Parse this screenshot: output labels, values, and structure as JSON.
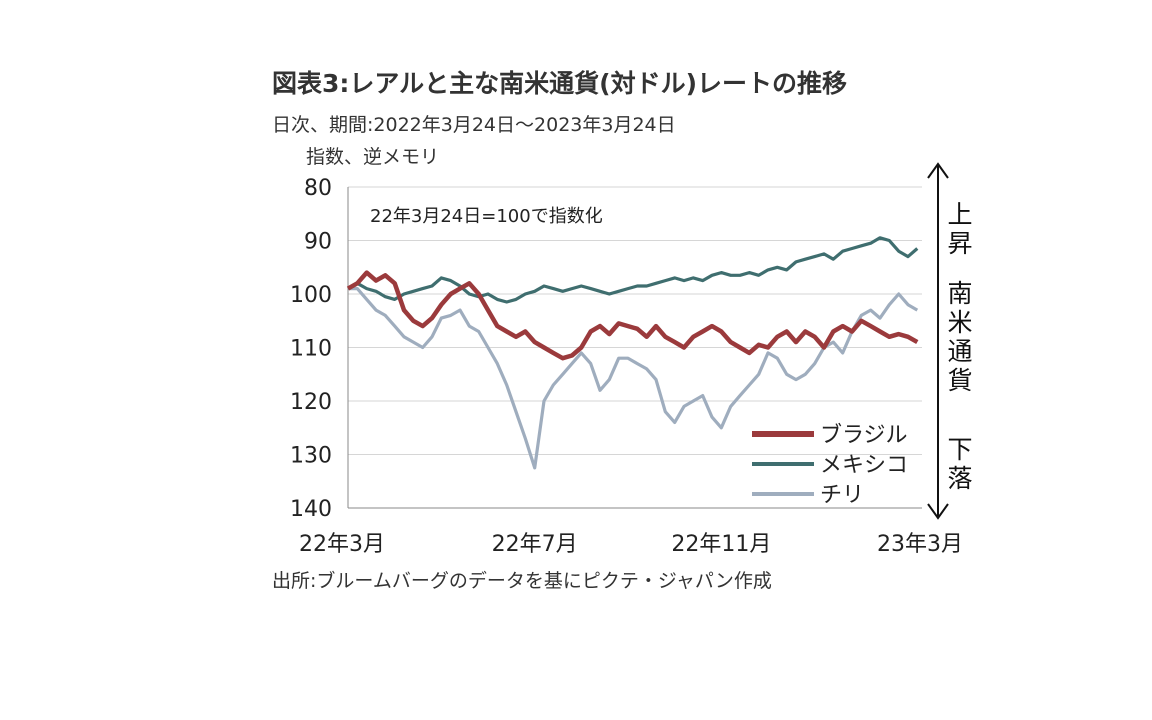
{
  "title": "図表3:レアルと主な南米通貨(対ドル)レートの推移",
  "subtitle": "日次、期間:2022年3月24日～2023年3月24日",
  "unit_note": "指数、逆メモリ",
  "source": "出所:ブルームバーグのデータを基にピクテ・ジャパン作成",
  "chart_data": {
    "type": "line",
    "annotation": "22年3月24日=100で指数化",
    "side_labels": {
      "up": "上昇",
      "middle": "南米通貨",
      "down": "下落"
    },
    "y_axis": {
      "reversed": true,
      "ylim": [
        80,
        140
      ],
      "ticks": [
        80,
        90,
        100,
        110,
        120,
        130,
        140
      ]
    },
    "x_axis": {
      "tick_labels": [
        "22年3月",
        "22年7月",
        "22年11月",
        "23年3月"
      ],
      "tick_positions_months": [
        0,
        4,
        8,
        12
      ],
      "xlim_months": [
        0,
        12.3
      ]
    },
    "legend_position": "bottom-right",
    "series": [
      {
        "name": "ブラジル",
        "color": "#9b3a3c",
        "x": [
          0,
          0.2,
          0.4,
          0.6,
          0.8,
          1.0,
          1.2,
          1.4,
          1.6,
          1.8,
          2.0,
          2.2,
          2.4,
          2.6,
          2.8,
          3.0,
          3.2,
          3.4,
          3.6,
          3.8,
          4.0,
          4.2,
          4.4,
          4.6,
          4.8,
          5.0,
          5.2,
          5.4,
          5.6,
          5.8,
          6.0,
          6.2,
          6.4,
          6.6,
          6.8,
          7.0,
          7.2,
          7.4,
          7.6,
          7.8,
          8.0,
          8.2,
          8.4,
          8.6,
          8.8,
          9.0,
          9.2,
          9.4,
          9.6,
          9.8,
          10.0,
          10.2,
          10.4,
          10.6,
          10.8,
          11.0,
          11.2,
          11.4,
          11.6,
          11.8,
          12.0,
          12.2
        ],
        "values": [
          99,
          98,
          96,
          97.5,
          96.5,
          98,
          103,
          105,
          106,
          104.5,
          102,
          100,
          99,
          98,
          100,
          103,
          106,
          107,
          108,
          107,
          109,
          110,
          111,
          112,
          111.5,
          110,
          107,
          106,
          107.5,
          105.5,
          106,
          106.5,
          108,
          106,
          108,
          109,
          110,
          108,
          107,
          106,
          107,
          109,
          110,
          111,
          109.5,
          110,
          108,
          107,
          109,
          107,
          108,
          110,
          107,
          106,
          107,
          105,
          106,
          107,
          108,
          107.5,
          108,
          109
        ]
      },
      {
        "name": "メキシコ",
        "color": "#3f6e6f",
        "x": [
          0,
          0.2,
          0.4,
          0.6,
          0.8,
          1.0,
          1.2,
          1.4,
          1.6,
          1.8,
          2.0,
          2.2,
          2.4,
          2.6,
          2.8,
          3.0,
          3.2,
          3.4,
          3.6,
          3.8,
          4.0,
          4.2,
          4.4,
          4.6,
          4.8,
          5.0,
          5.2,
          5.4,
          5.6,
          5.8,
          6.0,
          6.2,
          6.4,
          6.6,
          6.8,
          7.0,
          7.2,
          7.4,
          7.6,
          7.8,
          8.0,
          8.2,
          8.4,
          8.6,
          8.8,
          9.0,
          9.2,
          9.4,
          9.6,
          9.8,
          10.0,
          10.2,
          10.4,
          10.6,
          10.8,
          11.0,
          11.2,
          11.4,
          11.6,
          11.8,
          12.0,
          12.2
        ],
        "values": [
          99,
          98,
          99,
          99.5,
          100.5,
          101,
          100,
          99.5,
          99,
          98.5,
          97,
          97.5,
          98.5,
          100,
          100.5,
          100,
          101,
          101.5,
          101,
          100,
          99.5,
          98.5,
          99,
          99.5,
          99,
          98.5,
          99,
          99.5,
          100,
          99.5,
          99,
          98.5,
          98.5,
          98,
          97.5,
          97,
          97.5,
          97,
          97.5,
          96.5,
          96,
          96.5,
          96.5,
          96,
          96.5,
          95.5,
          95,
          95.5,
          94,
          93.5,
          93,
          92.5,
          93.5,
          92,
          91.5,
          91,
          90.5,
          89.5,
          90,
          92,
          93,
          91.5
        ]
      },
      {
        "name": "チリ",
        "color": "#9fadbe",
        "x": [
          0,
          0.2,
          0.4,
          0.6,
          0.8,
          1.0,
          1.2,
          1.4,
          1.6,
          1.8,
          2.0,
          2.2,
          2.4,
          2.6,
          2.8,
          3.0,
          3.2,
          3.4,
          3.6,
          3.8,
          4.0,
          4.2,
          4.4,
          4.6,
          4.8,
          5.0,
          5.2,
          5.4,
          5.6,
          5.8,
          6.0,
          6.2,
          6.4,
          6.6,
          6.8,
          7.0,
          7.2,
          7.4,
          7.6,
          7.8,
          8.0,
          8.2,
          8.4,
          8.6,
          8.8,
          9.0,
          9.2,
          9.4,
          9.6,
          9.8,
          10.0,
          10.2,
          10.4,
          10.6,
          10.8,
          11.0,
          11.2,
          11.4,
          11.6,
          11.8,
          12.0,
          12.2
        ],
        "values": [
          99,
          99,
          101,
          103,
          104,
          106,
          108,
          109,
          110,
          108,
          104.5,
          104,
          103,
          106,
          107,
          110,
          113,
          117,
          122,
          127,
          132.5,
          120,
          117,
          115,
          113,
          111,
          113,
          118,
          116,
          112,
          112,
          113,
          114,
          116,
          122,
          124,
          121,
          120,
          119,
          123,
          125,
          121,
          119,
          117,
          115,
          111,
          112,
          115,
          116,
          115,
          113,
          110,
          109,
          111,
          107,
          104,
          103,
          104.5,
          102,
          100,
          102,
          103
        ]
      }
    ]
  }
}
